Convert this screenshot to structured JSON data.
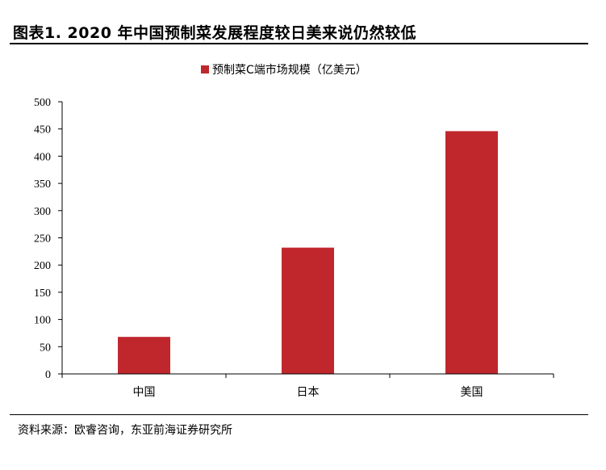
{
  "figure": {
    "title": "图表1.   2020 年中国预制菜发展程度较日美来说仍然较低",
    "source": "资料来源：欧睿咨询，东亚前海证券研究所"
  },
  "chart_data": {
    "type": "bar",
    "categories": [
      "中国",
      "日本",
      "美国"
    ],
    "series": [
      {
        "name": "预制菜C端市场规模（亿美元）",
        "values": [
          68,
          232,
          446
        ],
        "color": "#c0272d"
      }
    ],
    "ylim": [
      0,
      500
    ],
    "yticks": [
      0,
      50,
      100,
      150,
      200,
      250,
      300,
      350,
      400,
      450,
      500
    ],
    "legend_position": "top-center",
    "grid": false
  }
}
